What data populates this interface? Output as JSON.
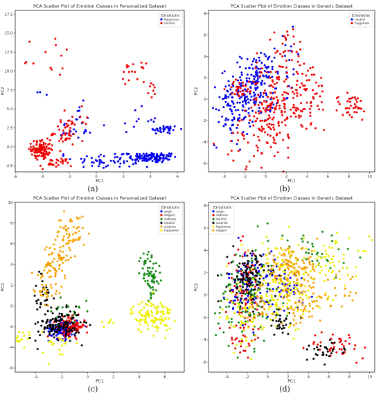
{
  "chart_data": [
    {
      "id": "a",
      "type": "scatter",
      "title": "PCA Scatter Plot of Emotion Classes in Personalized Dataset",
      "xlabel": "PC1",
      "ylabel": "PC2",
      "xlim": [
        -6,
        6.5
      ],
      "ylim": [
        -3.3,
        18
      ],
      "xticks": [
        "-6",
        "-4",
        "-2",
        "0",
        "2",
        "4",
        "6"
      ],
      "yticks": [
        "-2.5",
        "0.0",
        "2.5",
        "5.0",
        "7.5",
        "10.0",
        "12.5",
        "15.0",
        "17.5"
      ],
      "legend_title": "Emotions",
      "legend_position": "top-right",
      "caption": "(a)",
      "series": [
        {
          "name": "happiness",
          "color": "#0000ee",
          "clusters": [
            {
              "cx": 4.2,
              "cy": -1.4,
              "sx": 0.9,
              "sy": 0.35,
              "n": 110
            },
            {
              "cx": 5.0,
              "cy": 2.3,
              "sx": 0.55,
              "sy": 0.3,
              "n": 35
            },
            {
              "cx": 1.5,
              "cy": -1.8,
              "sx": 1.6,
              "sy": 0.6,
              "n": 60
            },
            {
              "cx": -1.5,
              "cy": 2.5,
              "sx": 0.6,
              "sy": 1.5,
              "n": 25
            },
            {
              "cx": 2.8,
              "cy": 3.5,
              "sx": 0.9,
              "sy": 0.8,
              "n": 12
            },
            {
              "cx": -4.0,
              "cy": 6.8,
              "sx": 0.2,
              "sy": 0.4,
              "n": 3
            }
          ]
        },
        {
          "name": "neutral",
          "color": "#ee0000",
          "clusters": [
            {
              "cx": -4.1,
              "cy": -0.3,
              "sx": 0.35,
              "sy": 0.6,
              "n": 110
            },
            {
              "cx": -3.0,
              "cy": -2.2,
              "sx": 0.6,
              "sy": 0.4,
              "n": 30
            },
            {
              "cx": -2.3,
              "cy": 2.0,
              "sx": 0.45,
              "sy": 1.1,
              "n": 45
            },
            {
              "cx": 2.6,
              "cy": 9.8,
              "sx": 0.5,
              "sy": 0.6,
              "n": 18
            },
            {
              "cx": 4.3,
              "cy": 7.5,
              "sx": 0.2,
              "sy": 0.6,
              "n": 8
            },
            {
              "cx": -2.8,
              "cy": 11.5,
              "sx": 0.6,
              "sy": 1.3,
              "n": 9
            },
            {
              "cx": -5.0,
              "cy": 13.0,
              "sx": 0.4,
              "sy": 1.8,
              "n": 4
            },
            {
              "cx": -0.8,
              "cy": 3.5,
              "sx": 0.4,
              "sy": 1.0,
              "n": 6
            }
          ]
        }
      ]
    },
    {
      "id": "b",
      "type": "scatter",
      "title": "PCA Scatter Plot of Emotion Classes in Generic Dataset",
      "xlabel": "PC1",
      "ylabel": "PC2",
      "xlim": [
        -5.5,
        10.5
      ],
      "ylim": [
        -6.8,
        8.3
      ],
      "xticks": [
        "-4",
        "-2",
        "0",
        "2",
        "4",
        "6",
        "8",
        "10"
      ],
      "yticks": [
        "-6",
        "-4",
        "-2",
        "0",
        "2",
        "4",
        "6",
        "8"
      ],
      "legend_title": "Emotions",
      "legend_position": "top-right",
      "caption": "(b)",
      "series": [
        {
          "name": "neutral",
          "color": "#0000ee",
          "clusters": [
            {
              "cx": -1.8,
              "cy": 0.3,
              "sx": 1.3,
              "sy": 1.3,
              "n": 170
            },
            {
              "cx": -0.8,
              "cy": 2.3,
              "sx": 0.8,
              "sy": 1.0,
              "n": 60
            },
            {
              "cx": 1.5,
              "cy": 3.5,
              "sx": 1.5,
              "sy": 1.5,
              "n": 25
            },
            {
              "cx": -3.5,
              "cy": -2.0,
              "sx": 0.7,
              "sy": 1.2,
              "n": 30
            }
          ]
        },
        {
          "name": "happiness",
          "color": "#ee0000",
          "clusters": [
            {
              "cx": 0.5,
              "cy": -1.0,
              "sx": 1.3,
              "sy": 2.2,
              "n": 150
            },
            {
              "cx": 3.3,
              "cy": 0.5,
              "sx": 1.6,
              "sy": 1.8,
              "n": 110
            },
            {
              "cx": 8.3,
              "cy": -0.8,
              "sx": 0.9,
              "sy": 0.7,
              "n": 35
            },
            {
              "cx": -2.5,
              "cy": 1.0,
              "sx": 0.6,
              "sy": 0.4,
              "n": 25
            },
            {
              "cx": 2.0,
              "cy": 5.0,
              "sx": 1.0,
              "sy": 0.8,
              "n": 20
            },
            {
              "cx": -1.0,
              "cy": -4.0,
              "sx": 1.5,
              "sy": 1.2,
              "n": 30
            }
          ]
        }
      ]
    },
    {
      "id": "c",
      "type": "scatter",
      "title": "PCA Scatter Plot of Emotion Classes in Personalized Dataset",
      "xlabel": "PC1",
      "ylabel": "PC2",
      "xlim": [
        -5.6,
        7.5
      ],
      "ylim": [
        -6.4,
        10
      ],
      "xticks": [
        "-4",
        "-2",
        "0",
        "2",
        "4",
        "6"
      ],
      "yticks": [
        "-6",
        "-4",
        "-2",
        "0",
        "2",
        "4",
        "6",
        "8",
        "10"
      ],
      "legend_title": "Emotions",
      "legend_position": "top-right",
      "caption": "(c)",
      "series": [
        {
          "name": "anger",
          "color": "#0000ee",
          "clusters": [
            {
              "cx": -1.9,
              "cy": -2.2,
              "sx": 0.55,
              "sy": 0.5,
              "n": 120
            }
          ]
        },
        {
          "name": "disgust",
          "color": "#ee0000",
          "clusters": [
            {
              "cx": -1.3,
              "cy": -2.0,
              "sx": 0.55,
              "sy": 0.45,
              "n": 110
            }
          ]
        },
        {
          "name": "sadness",
          "color": "#118811",
          "clusters": [
            {
              "cx": 4.9,
              "cy": 2.6,
              "sx": 0.4,
              "sy": 0.9,
              "n": 60
            },
            {
              "cx": 4.5,
              "cy": 4.5,
              "sx": 0.3,
              "sy": 0.4,
              "n": 10
            },
            {
              "cx": -1.2,
              "cy": -0.4,
              "sx": 0.8,
              "sy": 0.8,
              "n": 20
            }
          ]
        },
        {
          "name": "neutral",
          "color": "#000000",
          "clusters": [
            {
              "cx": -2.1,
              "cy": -1.8,
              "sx": 0.8,
              "sy": 0.7,
              "n": 120
            },
            {
              "cx": -3.4,
              "cy": 0.6,
              "sx": 0.4,
              "sy": 1.8,
              "n": 35
            }
          ]
        },
        {
          "name": "surprise",
          "color": "#f5a000",
          "clusters": [
            {
              "cx": -1.3,
              "cy": 7.0,
              "sx": 0.55,
              "sy": 0.9,
              "n": 55
            },
            {
              "cx": -2.8,
              "cy": 3.5,
              "sx": 0.5,
              "sy": 1.2,
              "n": 60
            },
            {
              "cx": -3.5,
              "cy": 1.5,
              "sx": 0.3,
              "sy": 0.6,
              "n": 15
            },
            {
              "cx": -2.0,
              "cy": 5.0,
              "sx": 0.4,
              "sy": 0.6,
              "n": 20
            }
          ]
        },
        {
          "name": "happiness",
          "color": "#eeee00",
          "clusters": [
            {
              "cx": 5.0,
              "cy": -1.0,
              "sx": 0.8,
              "sy": 0.8,
              "n": 120
            },
            {
              "cx": -4.8,
              "cy": -3.0,
              "sx": 0.4,
              "sy": 0.5,
              "n": 15
            },
            {
              "cx": -2.3,
              "cy": -3.8,
              "sx": 0.6,
              "sy": 0.7,
              "n": 20
            },
            {
              "cx": 1.6,
              "cy": -1.5,
              "sx": 0.4,
              "sy": 0.3,
              "n": 6
            }
          ]
        }
      ]
    },
    {
      "id": "d",
      "type": "scatter",
      "title": "PCA Scatter Plot of Emotion Classes in Generic Dataset",
      "xlabel": "PC1",
      "ylabel": "PC2",
      "xlim": [
        -5.8,
        10.5
      ],
      "ylim": [
        -6.9,
        8.3
      ],
      "xticks": [
        "-4",
        "-2",
        "0",
        "2",
        "4",
        "6",
        "8",
        "10"
      ],
      "yticks": [
        "-6",
        "-4",
        "-2",
        "0",
        "2",
        "4",
        "6",
        "8"
      ],
      "legend_title": "Emotions",
      "legend_position": "top-left",
      "caption": "(d)",
      "series": [
        {
          "name": "anger",
          "color": "#0000ee",
          "clusters": [
            {
              "cx": -1.5,
              "cy": 1.0,
              "sx": 1.2,
              "sy": 1.5,
              "n": 120
            },
            {
              "cx": 2.0,
              "cy": 0.5,
              "sx": 1.2,
              "sy": 1.0,
              "n": 40
            }
          ]
        },
        {
          "name": "sadness",
          "color": "#ee0000",
          "clusters": [
            {
              "cx": -2.0,
              "cy": 0.5,
              "sx": 1.0,
              "sy": 2.0,
              "n": 90
            },
            {
              "cx": 7.0,
              "cy": -4.5,
              "sx": 1.5,
              "sy": 0.6,
              "n": 40
            },
            {
              "cx": -2.5,
              "cy": -4.0,
              "sx": 0.6,
              "sy": 0.8,
              "n": 20
            }
          ]
        },
        {
          "name": "neutral",
          "color": "#118811",
          "clusters": [
            {
              "cx": -2.0,
              "cy": 0.0,
              "sx": 1.5,
              "sy": 2.2,
              "n": 120
            },
            {
              "cx": 4.5,
              "cy": 3.5,
              "sx": 2.0,
              "sy": 1.2,
              "n": 35
            }
          ]
        },
        {
          "name": "surprise",
          "color": "#000000",
          "clusters": [
            {
              "cx": -1.8,
              "cy": 1.5,
              "sx": 1.0,
              "sy": 1.2,
              "n": 110
            },
            {
              "cx": 5.5,
              "cy": -5.0,
              "sx": 1.2,
              "sy": 0.5,
              "n": 30
            },
            {
              "cx": 1.5,
              "cy": -2.5,
              "sx": 0.8,
              "sy": 0.6,
              "n": 30
            }
          ]
        },
        {
          "name": "happiness",
          "color": "#eeee00",
          "clusters": [
            {
              "cx": 1.5,
              "cy": 1.0,
              "sx": 2.0,
              "sy": 2.0,
              "n": 180
            },
            {
              "cx": 6.5,
              "cy": 3.0,
              "sx": 1.8,
              "sy": 1.0,
              "n": 50
            },
            {
              "cx": -2.5,
              "cy": -2.0,
              "sx": 1.0,
              "sy": 1.2,
              "n": 50
            }
          ]
        },
        {
          "name": "disgust",
          "color": "#f5a000",
          "clusters": [
            {
              "cx": 2.3,
              "cy": 2.5,
              "sx": 1.4,
              "sy": 0.9,
              "n": 100
            },
            {
              "cx": 3.0,
              "cy": -0.5,
              "sx": 1.2,
              "sy": 1.2,
              "n": 70
            },
            {
              "cx": 6.5,
              "cy": 0.0,
              "sx": 1.2,
              "sy": 1.0,
              "n": 25
            },
            {
              "cx": -1.5,
              "cy": -1.0,
              "sx": 0.8,
              "sy": 1.0,
              "n": 30
            }
          ]
        }
      ]
    }
  ]
}
